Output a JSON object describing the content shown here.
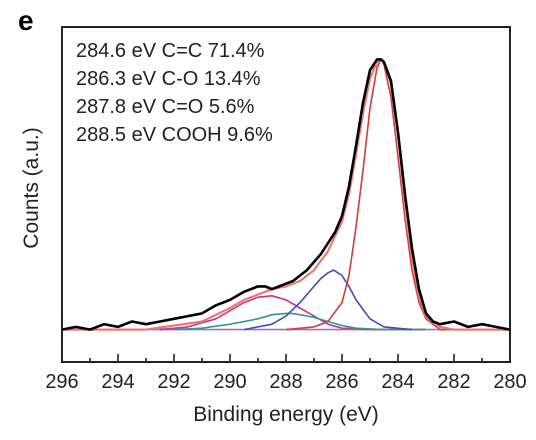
{
  "chart_data": {
    "type": "line",
    "panel_label": "e",
    "xlabel": "Binding energy (eV)",
    "ylabel": "Counts (a.u.)",
    "xlim": [
      296,
      280
    ],
    "x_reversed": true,
    "xticks": [
      296,
      294,
      292,
      290,
      288,
      286,
      284,
      282,
      280
    ],
    "ylim": [
      -0.12,
      1.12
    ],
    "y_tick_labels": false,
    "grid": false,
    "legend": "none",
    "annotations": [
      "284.6 eV C=C 71.4%",
      "286.3 eV C-O 13.4%",
      "287.8 eV C=O 5.6%",
      "288.5 eV COOH 9.6%"
    ],
    "series": [
      {
        "role": "measured",
        "color": "#000000",
        "x": [
          296.0,
          295.5,
          295.0,
          294.5,
          294.0,
          293.5,
          293.0,
          292.5,
          292.0,
          291.5,
          291.0,
          290.5,
          290.0,
          289.5,
          289.0,
          288.75,
          288.5,
          288.25,
          288.0,
          287.75,
          287.5,
          287.25,
          287.0,
          286.75,
          286.5,
          286.25,
          286.0,
          285.75,
          285.5,
          285.25,
          285.0,
          284.75,
          284.6,
          284.5,
          284.25,
          284.0,
          283.75,
          283.5,
          283.25,
          283.0,
          282.75,
          282.5,
          282.0,
          281.5,
          281.0,
          280.5,
          280.0
        ],
        "y": [
          0.0,
          0.01,
          0.0,
          0.02,
          0.01,
          0.03,
          0.02,
          0.03,
          0.04,
          0.05,
          0.06,
          0.09,
          0.11,
          0.14,
          0.16,
          0.16,
          0.15,
          0.16,
          0.17,
          0.18,
          0.2,
          0.22,
          0.25,
          0.28,
          0.32,
          0.36,
          0.42,
          0.53,
          0.68,
          0.84,
          0.96,
          1.0,
          1.0,
          0.99,
          0.92,
          0.73,
          0.5,
          0.3,
          0.15,
          0.06,
          0.03,
          0.02,
          0.03,
          0.01,
          0.02,
          0.01,
          0.0
        ]
      },
      {
        "role": "envelope",
        "color": "#e87878",
        "x": [
          296.0,
          293.0,
          291.0,
          290.0,
          289.5,
          289.0,
          288.5,
          288.0,
          287.5,
          287.0,
          286.5,
          286.0,
          285.75,
          285.5,
          285.25,
          285.0,
          284.75,
          284.6,
          284.5,
          284.25,
          284.0,
          283.75,
          283.5,
          283.25,
          283.0,
          282.5,
          282.0,
          280.0
        ],
        "y": [
          0.0,
          0.0,
          0.03,
          0.08,
          0.11,
          0.13,
          0.15,
          0.16,
          0.18,
          0.22,
          0.29,
          0.4,
          0.5,
          0.65,
          0.8,
          0.93,
          0.99,
          1.0,
          0.99,
          0.91,
          0.72,
          0.48,
          0.27,
          0.12,
          0.05,
          0.01,
          0.0,
          0.0
        ]
      },
      {
        "role": "C=C component",
        "color": "#d23c3c",
        "x": [
          288.0,
          287.0,
          286.5,
          286.0,
          285.75,
          285.5,
          285.25,
          285.0,
          284.75,
          284.6,
          284.5,
          284.25,
          284.0,
          283.75,
          283.5,
          283.25,
          283.0,
          282.5,
          281.5
        ],
        "y": [
          0.0,
          0.01,
          0.03,
          0.1,
          0.2,
          0.38,
          0.59,
          0.82,
          0.97,
          1.0,
          0.98,
          0.86,
          0.64,
          0.41,
          0.22,
          0.1,
          0.04,
          0.0,
          0.0
        ]
      },
      {
        "role": "C-O component",
        "color": "#3a4fb4",
        "x": [
          289.5,
          288.5,
          288.0,
          287.5,
          287.0,
          286.75,
          286.5,
          286.3,
          286.0,
          285.75,
          285.5,
          285.0,
          284.5,
          283.5
        ],
        "y": [
          0.0,
          0.02,
          0.05,
          0.1,
          0.16,
          0.19,
          0.21,
          0.22,
          0.2,
          0.16,
          0.11,
          0.04,
          0.01,
          0.0
        ]
      },
      {
        "role": "C=O component",
        "color": "#2f9a8a",
        "x": [
          292.0,
          291.0,
          290.0,
          289.0,
          288.5,
          288.0,
          287.8,
          287.5,
          287.0,
          286.5,
          286.0,
          285.5,
          284.5,
          283.0
        ],
        "y": [
          0.0,
          0.005,
          0.02,
          0.04,
          0.055,
          0.06,
          0.06,
          0.055,
          0.045,
          0.03,
          0.015,
          0.005,
          0.0,
          0.0
        ]
      },
      {
        "role": "COOH component",
        "color": "#c8329f",
        "x": [
          292.5,
          291.5,
          290.5,
          290.0,
          289.5,
          289.0,
          288.5,
          288.0,
          287.5,
          287.0,
          286.5,
          286.0,
          285.0,
          283.0
        ],
        "y": [
          0.0,
          0.01,
          0.04,
          0.07,
          0.1,
          0.12,
          0.125,
          0.11,
          0.08,
          0.05,
          0.02,
          0.005,
          0.0,
          0.0
        ]
      },
      {
        "role": "baseline",
        "color": "#a070c8",
        "x": [
          296.0,
          280.0
        ],
        "y": [
          0.0,
          0.0
        ]
      }
    ]
  }
}
